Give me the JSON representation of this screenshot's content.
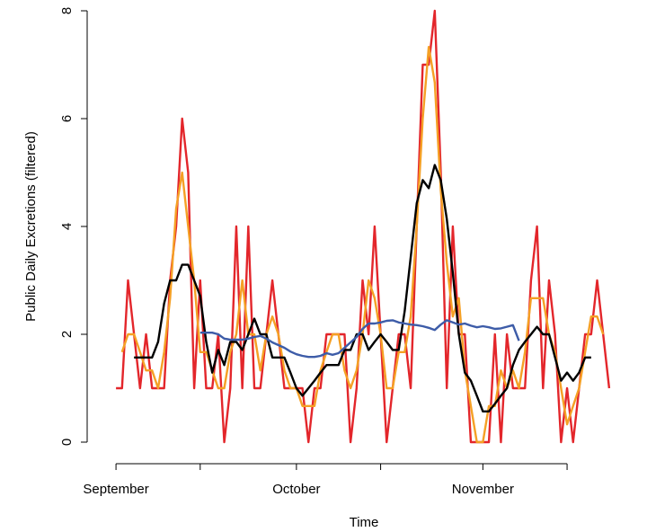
{
  "chart_data": {
    "type": "line",
    "xlabel": "Time",
    "ylabel": "Public Daily Excretions (filtered)",
    "x": [
      0,
      1,
      2,
      3,
      4,
      5,
      6,
      7,
      8,
      9,
      10,
      11,
      12,
      13,
      14,
      15,
      16,
      17,
      18,
      19,
      20,
      21,
      22,
      23,
      24,
      25,
      26,
      27,
      28,
      29,
      30,
      31,
      32,
      33,
      34,
      35,
      36,
      37,
      38,
      39,
      40,
      41,
      42,
      43,
      44,
      45,
      46,
      47,
      48,
      49,
      50,
      51,
      52,
      53,
      54,
      55,
      56,
      57,
      58,
      59,
      60,
      61,
      62,
      63,
      64,
      65,
      66,
      67,
      68,
      69,
      70,
      71,
      72,
      73,
      74,
      75,
      76,
      77,
      78,
      79,
      80,
      81,
      82
    ],
    "series": [
      {
        "color": "#e3262b",
        "values": [
          1,
          1,
          3,
          2,
          1,
          2,
          1,
          1,
          1,
          3,
          4,
          6,
          5,
          1,
          3,
          1,
          1,
          2,
          0,
          1,
          4,
          1,
          4,
          1,
          1,
          2,
          3,
          2,
          1,
          1,
          1,
          1,
          0,
          1,
          1,
          2,
          2,
          2,
          2,
          0,
          1,
          3,
          2,
          4,
          2,
          0,
          1,
          2,
          2,
          1,
          4,
          7,
          7,
          8,
          5,
          1,
          4,
          2,
          2,
          0,
          0,
          0,
          0,
          2,
          0,
          2,
          1,
          1,
          1,
          3,
          4,
          1,
          3,
          2,
          0,
          1,
          0,
          1,
          2,
          2,
          3,
          2,
          1
        ]
      },
      {
        "color": "#f5a025",
        "values": [
          null,
          1.67,
          2.0,
          2.0,
          1.67,
          1.33,
          1.33,
          1.0,
          1.67,
          2.67,
          4.33,
          5.0,
          4.0,
          3.0,
          1.67,
          1.67,
          1.33,
          1.0,
          1.0,
          1.67,
          2.0,
          3.0,
          2.0,
          2.0,
          1.33,
          2.0,
          2.33,
          2.0,
          1.33,
          1.0,
          1.0,
          0.67,
          0.67,
          0.67,
          1.33,
          1.67,
          2.0,
          2.0,
          1.33,
          1.0,
          1.33,
          2.0,
          3.0,
          2.67,
          2.0,
          1.0,
          1.0,
          1.67,
          1.67,
          2.33,
          4.0,
          6.0,
          7.33,
          6.67,
          4.67,
          3.33,
          2.33,
          2.67,
          1.33,
          0.67,
          0,
          0,
          0.67,
          0.67,
          1.33,
          1.0,
          1.33,
          1.0,
          1.67,
          2.67,
          2.67,
          2.67,
          2.0,
          1.67,
          1.0,
          0.33,
          0.67,
          1.0,
          1.67,
          2.33,
          2.33,
          2.0,
          null
        ]
      },
      {
        "color": "#000000",
        "values": [
          null,
          null,
          null,
          1.57,
          1.57,
          1.57,
          1.57,
          1.86,
          2.57,
          3.0,
          3.0,
          3.29,
          3.29,
          3.0,
          2.71,
          1.86,
          1.29,
          1.71,
          1.43,
          1.86,
          1.86,
          1.71,
          2.0,
          2.29,
          2.0,
          2.0,
          1.57,
          1.57,
          1.57,
          1.29,
          1.0,
          0.86,
          1.0,
          1.14,
          1.29,
          1.43,
          1.43,
          1.43,
          1.71,
          1.71,
          2.0,
          2.0,
          1.71,
          1.86,
          2.0,
          1.86,
          1.71,
          1.71,
          2.43,
          3.43,
          4.43,
          4.86,
          4.71,
          5.14,
          4.86,
          4.14,
          3.14,
          2.0,
          1.29,
          1.14,
          0.86,
          0.57,
          0.57,
          0.71,
          0.86,
          1.0,
          1.43,
          1.71,
          1.86,
          2.0,
          2.14,
          2.0,
          2.0,
          1.57,
          1.14,
          1.29,
          1.14,
          1.29,
          1.57,
          1.57,
          null,
          null,
          null
        ]
      },
      {
        "color": "#3d5ca8",
        "values": [
          null,
          null,
          null,
          null,
          null,
          null,
          null,
          null,
          null,
          null,
          null,
          null,
          null,
          null,
          2.03,
          2.03,
          2.03,
          2.0,
          1.92,
          1.9,
          1.9,
          1.9,
          1.92,
          1.95,
          1.97,
          1.92,
          1.85,
          1.8,
          1.75,
          1.68,
          1.63,
          1.6,
          1.58,
          1.58,
          1.6,
          1.65,
          1.62,
          1.65,
          1.75,
          1.85,
          1.95,
          2.1,
          2.2,
          2.2,
          2.22,
          2.25,
          2.26,
          2.22,
          2.2,
          2.18,
          2.17,
          2.15,
          2.12,
          2.08,
          2.18,
          2.26,
          2.22,
          2.18,
          2.2,
          2.16,
          2.13,
          2.15,
          2.13,
          2.1,
          2.11,
          2.14,
          2.17,
          1.88,
          null,
          null,
          null,
          null,
          null,
          null,
          null,
          null,
          null,
          null,
          null,
          null,
          null,
          null,
          null
        ]
      }
    ],
    "xlim": [
      -3.3,
      85.3
    ],
    "xticks": [
      {
        "value": 0,
        "label": "September"
      },
      {
        "value": 14,
        "label": null
      },
      {
        "value": 30,
        "label": "October"
      },
      {
        "value": 44,
        "label": null
      },
      {
        "value": 61,
        "label": "November"
      },
      {
        "value": 75,
        "label": null
      }
    ],
    "ylim": [
      -0.32,
      8.32
    ],
    "yticks": [
      0,
      2,
      4,
      6,
      8
    ]
  }
}
